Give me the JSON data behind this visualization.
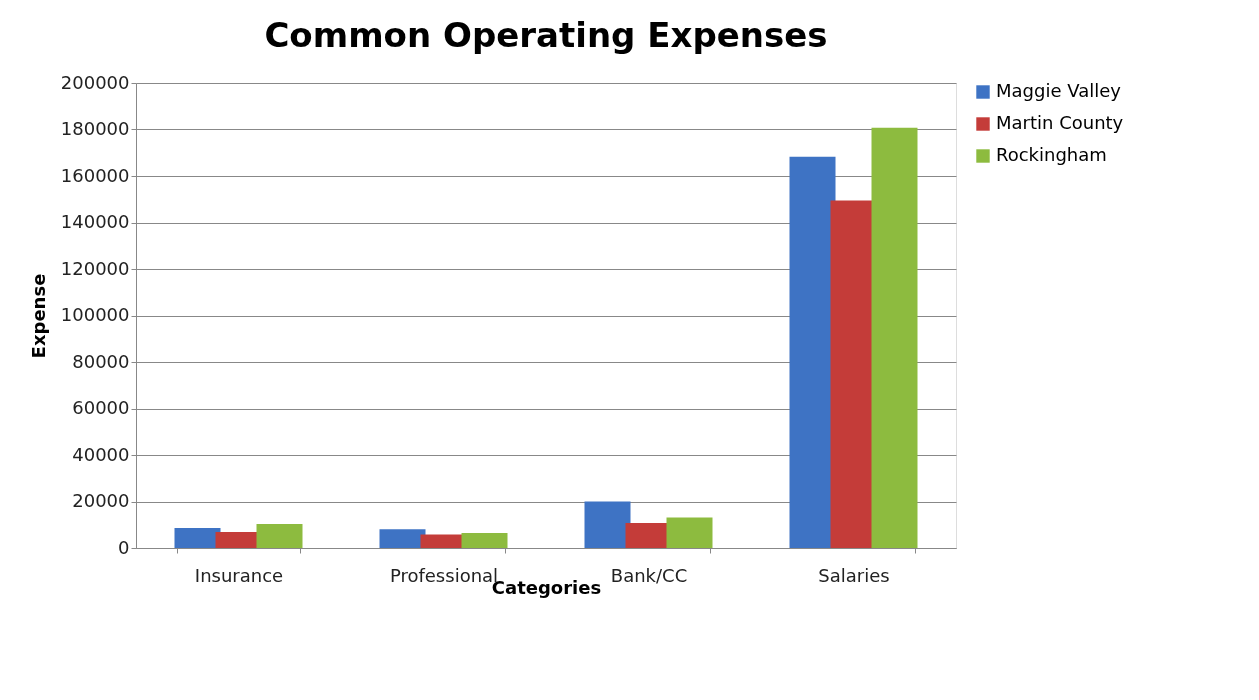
{
  "chart_data": {
    "type": "bar",
    "title": "Common Operating Expenses",
    "xlabel": "Categories",
    "ylabel": "Expense",
    "categories": [
      "Insurance",
      "Professional",
      "Bank/CC",
      "Salaries"
    ],
    "series": [
      {
        "name": "Maggie Valley",
        "color": "#3e73c4",
        "values": [
          8600,
          8100,
          20000,
          168300
        ]
      },
      {
        "name": "Martin County",
        "color": "#c43c39",
        "values": [
          6900,
          5800,
          10700,
          149500
        ]
      },
      {
        "name": "Rockingham",
        "color": "#8dbb3f",
        "values": [
          10300,
          6400,
          13100,
          180700
        ]
      }
    ],
    "ylim": [
      0,
      200000
    ],
    "yticks": [
      0,
      20000,
      40000,
      60000,
      80000,
      100000,
      120000,
      140000,
      160000,
      180000,
      200000
    ],
    "grid": "y",
    "legend": "right"
  }
}
